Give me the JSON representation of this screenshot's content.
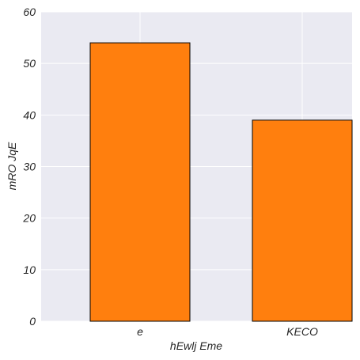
{
  "chart_data": {
    "type": "bar",
    "title": "",
    "xlabel": "hEwlj Eme",
    "ylabel": "mRO JqE",
    "categories": [
      "e",
      "KECO"
    ],
    "values": [
      54,
      39
    ],
    "ylim": [
      0,
      60
    ],
    "yticks": [
      0,
      10,
      20,
      30,
      40,
      50,
      60
    ],
    "grid": true,
    "colors": {
      "bar_fill": "#ff7f0e",
      "bar_edge": "#000000",
      "plot_background": "#eaeaf2",
      "grid": "#ffffff"
    }
  }
}
